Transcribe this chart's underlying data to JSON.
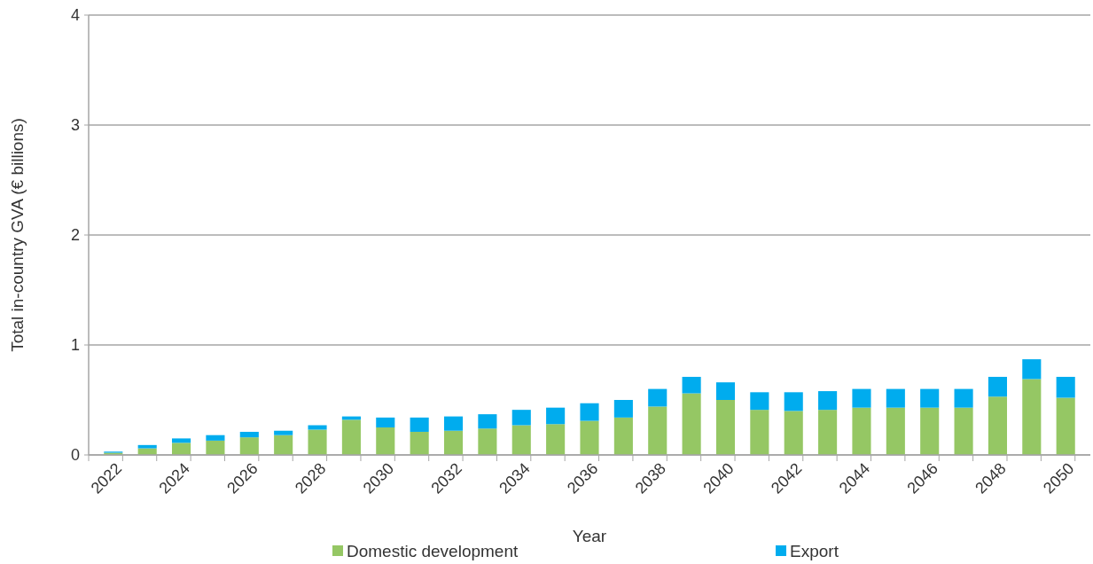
{
  "chart_data": {
    "type": "bar",
    "stacked": true,
    "xlabel": "Year",
    "ylabel": "Total in-country GVA (€ billions)",
    "categories": [
      "2022",
      null,
      "2024",
      null,
      "2026",
      null,
      "2028",
      null,
      "2030",
      null,
      "2032",
      null,
      "2034",
      null,
      "2036",
      null,
      "2038",
      null,
      "2040",
      null,
      "2042",
      null,
      "2044",
      null,
      "2046",
      null,
      "2048",
      null,
      "2050"
    ],
    "series": [
      {
        "name": "Domestic development",
        "color": "#95c764",
        "values": [
          0.02,
          0.06,
          0.11,
          0.13,
          0.16,
          0.18,
          0.23,
          0.32,
          0.25,
          0.21,
          0.22,
          0.24,
          0.27,
          0.28,
          0.31,
          0.34,
          0.44,
          0.56,
          0.5,
          0.41,
          0.4,
          0.41,
          0.43,
          0.43,
          0.43,
          0.43,
          0.53,
          0.69,
          0.52
        ]
      },
      {
        "name": "Export",
        "color": "#00acee",
        "values": [
          0.01,
          0.03,
          0.04,
          0.05,
          0.05,
          0.04,
          0.04,
          0.03,
          0.09,
          0.13,
          0.13,
          0.13,
          0.14,
          0.15,
          0.16,
          0.16,
          0.16,
          0.15,
          0.16,
          0.16,
          0.17,
          0.17,
          0.17,
          0.17,
          0.17,
          0.17,
          0.18,
          0.18,
          0.19
        ]
      }
    ],
    "ylim": [
      0,
      4
    ],
    "yticks": [
      0,
      1,
      2,
      3,
      4
    ],
    "grid": "y",
    "legend": "bottom"
  }
}
